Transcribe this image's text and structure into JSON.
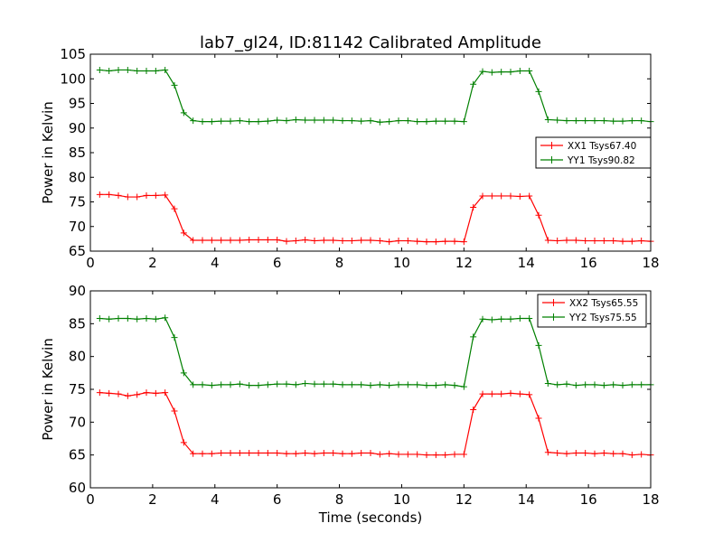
{
  "title": "lab7_gl24, ID:81142 Calibrated Amplitude",
  "chart_data": [
    {
      "type": "line",
      "ylabel": "Power in Kelvin",
      "xlim": [
        0,
        18
      ],
      "ylim": [
        65,
        105
      ],
      "xticks": [
        0,
        2,
        4,
        6,
        8,
        10,
        12,
        14,
        16,
        18
      ],
      "yticks": [
        65,
        70,
        75,
        80,
        85,
        90,
        95,
        100,
        105
      ],
      "legend_position": "center-right",
      "x": [
        0.3,
        0.6,
        0.9,
        1.2,
        1.5,
        1.8,
        2.1,
        2.4,
        2.7,
        3.0,
        3.3,
        3.6,
        3.9,
        4.2,
        4.5,
        4.8,
        5.1,
        5.4,
        5.7,
        6.0,
        6.3,
        6.6,
        6.9,
        7.2,
        7.5,
        7.8,
        8.1,
        8.4,
        8.7,
        9.0,
        9.3,
        9.6,
        9.9,
        10.2,
        10.5,
        10.8,
        11.1,
        11.4,
        11.7,
        12.0,
        12.3,
        12.6,
        12.9,
        13.2,
        13.5,
        13.8,
        14.1,
        14.4,
        14.7,
        15.0,
        15.3,
        15.6,
        15.9,
        16.2,
        16.5,
        16.8,
        17.1,
        17.4,
        17.7,
        18.0
      ],
      "series": [
        {
          "name": "XX1 Tsys67.40",
          "color": "#ff0000",
          "values": [
            76.5,
            76.5,
            76.3,
            76.0,
            76.0,
            76.3,
            76.3,
            76.4,
            73.6,
            68.7,
            67.2,
            67.2,
            67.2,
            67.2,
            67.2,
            67.2,
            67.3,
            67.3,
            67.3,
            67.3,
            67.0,
            67.1,
            67.3,
            67.1,
            67.2,
            67.2,
            67.1,
            67.1,
            67.2,
            67.2,
            67.1,
            66.9,
            67.1,
            67.1,
            67.0,
            66.9,
            66.9,
            67.0,
            67.0,
            66.9,
            73.9,
            76.2,
            76.2,
            76.2,
            76.2,
            76.1,
            76.2,
            72.3,
            67.2,
            67.1,
            67.2,
            67.2,
            67.1,
            67.1,
            67.1,
            67.1,
            67.0,
            67.0,
            67.1,
            67.0
          ]
        },
        {
          "name": "YY1 Tsys90.82",
          "color": "#008000",
          "values": [
            101.8,
            101.6,
            101.8,
            101.8,
            101.6,
            101.6,
            101.6,
            101.8,
            98.7,
            93.1,
            91.5,
            91.3,
            91.3,
            91.4,
            91.4,
            91.5,
            91.3,
            91.3,
            91.4,
            91.6,
            91.5,
            91.7,
            91.6,
            91.6,
            91.6,
            91.6,
            91.5,
            91.5,
            91.4,
            91.5,
            91.2,
            91.3,
            91.5,
            91.5,
            91.3,
            91.3,
            91.4,
            91.4,
            91.4,
            91.3,
            98.9,
            101.5,
            101.3,
            101.4,
            101.4,
            101.6,
            101.6,
            97.4,
            91.7,
            91.6,
            91.5,
            91.5,
            91.5,
            91.5,
            91.5,
            91.4,
            91.4,
            91.5,
            91.5,
            91.3
          ]
        }
      ]
    },
    {
      "type": "line",
      "xlabel": "Time (seconds)",
      "ylabel": "Power in Kelvin",
      "xlim": [
        0,
        18
      ],
      "ylim": [
        60,
        90
      ],
      "xticks": [
        0,
        2,
        4,
        6,
        8,
        10,
        12,
        14,
        16,
        18
      ],
      "yticks": [
        60,
        65,
        70,
        75,
        80,
        85,
        90
      ],
      "legend_position": "top-right",
      "x": [
        0.3,
        0.6,
        0.9,
        1.2,
        1.5,
        1.8,
        2.1,
        2.4,
        2.7,
        3.0,
        3.3,
        3.6,
        3.9,
        4.2,
        4.5,
        4.8,
        5.1,
        5.4,
        5.7,
        6.0,
        6.3,
        6.6,
        6.9,
        7.2,
        7.5,
        7.8,
        8.1,
        8.4,
        8.7,
        9.0,
        9.3,
        9.6,
        9.9,
        10.2,
        10.5,
        10.8,
        11.1,
        11.4,
        11.7,
        12.0,
        12.3,
        12.6,
        12.9,
        13.2,
        13.5,
        13.8,
        14.1,
        14.4,
        14.7,
        15.0,
        15.3,
        15.6,
        15.9,
        16.2,
        16.5,
        16.8,
        17.1,
        17.4,
        17.7,
        18.0
      ],
      "series": [
        {
          "name": "XX2 Tsys65.55",
          "color": "#ff0000",
          "values": [
            74.5,
            74.4,
            74.3,
            74.0,
            74.2,
            74.5,
            74.4,
            74.5,
            71.7,
            66.9,
            65.2,
            65.2,
            65.2,
            65.3,
            65.3,
            65.3,
            65.3,
            65.3,
            65.3,
            65.3,
            65.2,
            65.2,
            65.3,
            65.2,
            65.3,
            65.3,
            65.2,
            65.2,
            65.3,
            65.3,
            65.1,
            65.2,
            65.1,
            65.1,
            65.1,
            65.0,
            65.0,
            65.0,
            65.1,
            65.1,
            71.9,
            74.3,
            74.3,
            74.3,
            74.4,
            74.3,
            74.2,
            70.6,
            65.4,
            65.3,
            65.2,
            65.3,
            65.3,
            65.2,
            65.3,
            65.2,
            65.2,
            65.0,
            65.1,
            65.0
          ]
        },
        {
          "name": "YY2 Tsys75.55",
          "color": "#008000",
          "values": [
            85.8,
            85.7,
            85.8,
            85.8,
            85.7,
            85.8,
            85.7,
            85.9,
            82.9,
            77.5,
            75.7,
            75.7,
            75.6,
            75.7,
            75.7,
            75.8,
            75.6,
            75.6,
            75.7,
            75.8,
            75.8,
            75.7,
            75.9,
            75.8,
            75.8,
            75.8,
            75.7,
            75.7,
            75.7,
            75.6,
            75.7,
            75.6,
            75.7,
            75.7,
            75.7,
            75.6,
            75.6,
            75.7,
            75.6,
            75.4,
            83.0,
            85.7,
            85.6,
            85.7,
            85.7,
            85.8,
            85.8,
            81.7,
            75.9,
            75.7,
            75.8,
            75.6,
            75.7,
            75.7,
            75.6,
            75.7,
            75.6,
            75.7,
            75.7,
            75.7
          ]
        }
      ]
    }
  ]
}
